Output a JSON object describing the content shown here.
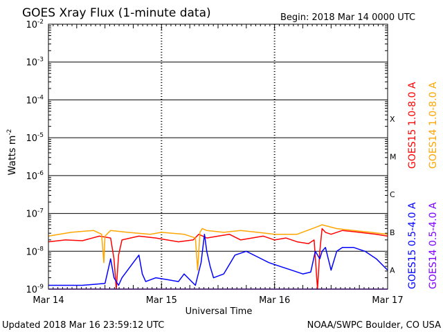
{
  "chart_data": {
    "type": "line",
    "title": "GOES Xray Flux (1-minute data)",
    "begin_label": "Begin:  2018 Mar 14 0000 UTC",
    "xlabel": "Universal Time",
    "ylabel": "Watts m",
    "ylabel_exp": "-2",
    "yscale": "log",
    "ylim_exp": [
      -9,
      -2
    ],
    "y_ticks": [
      {
        "base": "10",
        "exp": "-2"
      },
      {
        "base": "10",
        "exp": "-3"
      },
      {
        "base": "10",
        "exp": "-4"
      },
      {
        "base": "10",
        "exp": "-5"
      },
      {
        "base": "10",
        "exp": "-6"
      },
      {
        "base": "10",
        "exp": "-7"
      },
      {
        "base": "10",
        "exp": "-8"
      },
      {
        "base": "10",
        "exp": "-9"
      }
    ],
    "x_ticks": [
      "Mar 14",
      "Mar 15",
      "Mar 16",
      "Mar 17"
    ],
    "flare_classes": [
      "X",
      "M",
      "C",
      "B",
      "A"
    ],
    "grid": "horizontal at each decade",
    "series": [
      {
        "name": "GOES15 1.0-8.0 A",
        "color": "#ff0000",
        "x_days": [
          0,
          0.15,
          0.3,
          0.45,
          0.55,
          0.58,
          0.6,
          0.62,
          0.65,
          0.8,
          0.95,
          1.05,
          1.15,
          1.28,
          1.33,
          1.4,
          1.5,
          1.6,
          1.7,
          1.8,
          1.9,
          2.0,
          2.1,
          2.2,
          2.3,
          2.35,
          2.38,
          2.4,
          2.42,
          2.45,
          2.5,
          2.6,
          2.75,
          2.9,
          3.0
        ],
        "log_flux": [
          -7.75,
          -7.7,
          -7.72,
          -7.6,
          -7.65,
          -8.2,
          -9.0,
          -8.1,
          -7.7,
          -7.6,
          -7.65,
          -7.7,
          -7.75,
          -7.7,
          -7.55,
          -7.65,
          -7.6,
          -7.55,
          -7.7,
          -7.65,
          -7.6,
          -7.7,
          -7.65,
          -7.75,
          -7.8,
          -7.7,
          -9.0,
          -8.0,
          -7.4,
          -7.5,
          -7.55,
          -7.45,
          -7.5,
          -7.55,
          -7.6
        ]
      },
      {
        "name": "GOES14 1.0-8.0 A",
        "color": "#ffa500",
        "x_days": [
          0,
          0.2,
          0.4,
          0.47,
          0.49,
          0.5,
          0.55,
          0.7,
          0.9,
          1.0,
          1.2,
          1.3,
          1.32,
          1.34,
          1.36,
          1.4,
          1.55,
          1.7,
          1.85,
          2.0,
          2.2,
          2.38,
          2.42,
          2.55,
          2.7,
          2.85,
          3.0
        ],
        "log_flux": [
          -7.6,
          -7.5,
          -7.45,
          -7.55,
          -8.3,
          -7.6,
          -7.45,
          -7.5,
          -7.55,
          -7.5,
          -7.55,
          -7.65,
          -8.5,
          -7.5,
          -7.4,
          -7.45,
          -7.5,
          -7.45,
          -7.5,
          -7.55,
          -7.55,
          -7.35,
          -7.3,
          -7.4,
          -7.45,
          -7.5,
          -7.55
        ]
      },
      {
        "name": "GOES15 0.5-4.0 A",
        "color": "#0000ff",
        "x_days": [
          0,
          0.3,
          0.5,
          0.55,
          0.58,
          0.62,
          0.65,
          0.75,
          0.8,
          0.83,
          0.86,
          0.95,
          1.05,
          1.15,
          1.2,
          1.3,
          1.35,
          1.38,
          1.4,
          1.43,
          1.46,
          1.55,
          1.65,
          1.75,
          1.85,
          1.95,
          2.05,
          2.15,
          2.25,
          2.32,
          2.36,
          2.4,
          2.42,
          2.45,
          2.5,
          2.55,
          2.6,
          2.7,
          2.8,
          2.9,
          3.0
        ],
        "log_flux": [
          -8.9,
          -8.9,
          -8.85,
          -8.2,
          -8.7,
          -8.9,
          -8.7,
          -8.3,
          -8.1,
          -8.6,
          -8.8,
          -8.7,
          -8.75,
          -8.8,
          -8.6,
          -8.9,
          -8.3,
          -7.55,
          -8.0,
          -8.4,
          -8.7,
          -8.6,
          -8.1,
          -8.0,
          -8.15,
          -8.3,
          -8.4,
          -8.5,
          -8.6,
          -8.55,
          -8.0,
          -8.2,
          -8.0,
          -7.9,
          -8.5,
          -8.0,
          -7.9,
          -7.9,
          -8.0,
          -8.2,
          -8.5
        ]
      },
      {
        "name": "GOES14 0.5-4.0 A",
        "color": "#7f00ff",
        "x_days": [
          0,
          3.0
        ],
        "log_flux": [
          -9.0,
          -9.0
        ]
      }
    ]
  },
  "footer": {
    "updated": "Updated 2018 Mar 16 23:59:12 UTC",
    "credit": "NOAA/SWPC Boulder, CO USA"
  }
}
